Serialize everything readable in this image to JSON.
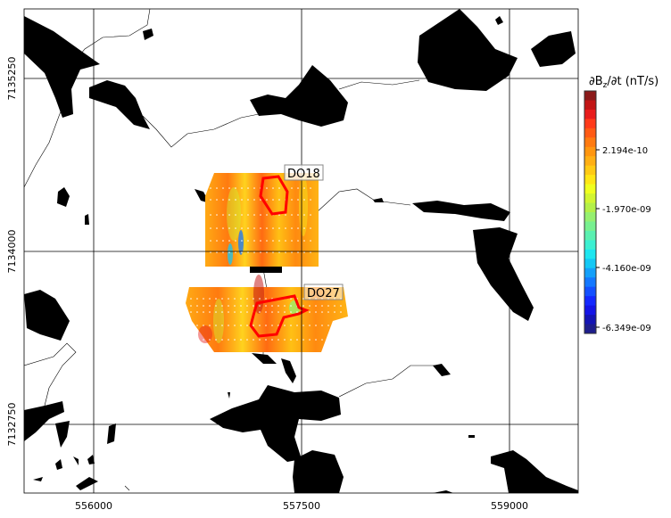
{
  "map": {
    "x_ticks": [
      "556000",
      "557500",
      "559000"
    ],
    "y_ticks": [
      "7135250",
      "7134000",
      "7132750"
    ],
    "x_tick_values": [
      556000,
      557500,
      559000
    ],
    "y_tick_values": [
      7135250,
      7134000,
      7132750
    ],
    "grid": true,
    "labels": [
      "DO18",
      "DO27"
    ],
    "outline_color": "#ff0000",
    "land_water_color": "#000000"
  },
  "colorbar": {
    "title": "∂Bz/∂t (nT/s)",
    "title_main": "∂B",
    "title_sub": "z",
    "title_rest": "/∂t (nT/s)",
    "ticks": [
      "2.194e-10",
      "-1.970e-09",
      "-4.160e-09",
      "-6.349e-09"
    ],
    "colormap": "jet",
    "colors": [
      "#8b1a1a",
      "#c21515",
      "#e81c1c",
      "#ff3a1a",
      "#ff5a14",
      "#ff7a10",
      "#ff960f",
      "#ffaf14",
      "#ffca14",
      "#ffe614",
      "#f0ff1e",
      "#d2f530",
      "#b4f048",
      "#96f070",
      "#78f090",
      "#5af0b0",
      "#3cf0d2",
      "#1ee6f0",
      "#14c8f5",
      "#14a0fa",
      "#1478ff",
      "#1450ff",
      "#1428ff",
      "#1414e6",
      "#1414b4",
      "#1e1e8c"
    ]
  }
}
